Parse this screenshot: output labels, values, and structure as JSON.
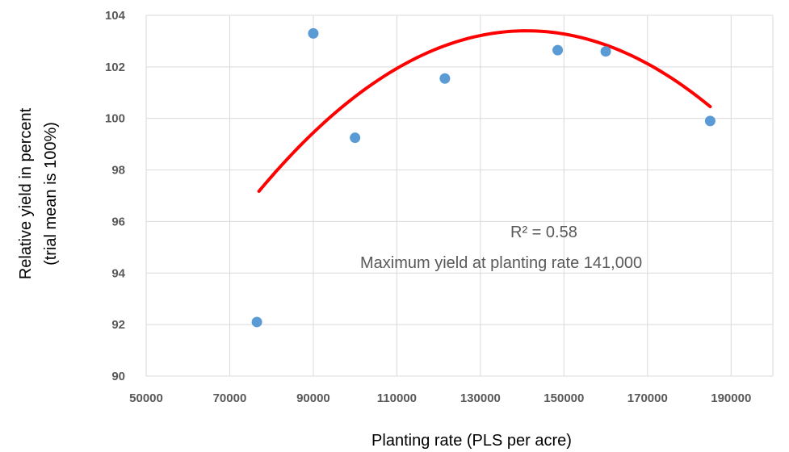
{
  "chart_data": {
    "type": "scatter",
    "xlabel": "Planting rate (PLS per acre)",
    "ylabel_lines": [
      "Relative yield in percent",
      "(trial mean is 100%)"
    ],
    "xlim": [
      50000,
      200000
    ],
    "ylim": [
      90,
      104
    ],
    "x_ticks": [
      50000,
      70000,
      90000,
      110000,
      130000,
      150000,
      170000,
      190000
    ],
    "y_ticks": [
      90,
      92,
      94,
      96,
      98,
      100,
      102,
      104
    ],
    "x_tick_labels": [
      "50000",
      "70000",
      "90000",
      "110000",
      "130000",
      "150000",
      "170000",
      "190000"
    ],
    "y_tick_labels": [
      "90",
      "92",
      "94",
      "96",
      "98",
      "100",
      "102",
      "104"
    ],
    "grid": true,
    "points": [
      {
        "x": 76500,
        "y": 92.1
      },
      {
        "x": 90000,
        "y": 103.3
      },
      {
        "x": 100000,
        "y": 99.25
      },
      {
        "x": 121500,
        "y": 101.55
      },
      {
        "x": 148500,
        "y": 102.65
      },
      {
        "x": 160000,
        "y": 102.6
      },
      {
        "x": 185000,
        "y": 99.9
      }
    ],
    "trendline": {
      "type": "polynomial-2",
      "x_range": [
        77000,
        185000
      ],
      "vertex": {
        "x": 141000,
        "y": 103.4
      },
      "a": -1.52e-09
    },
    "annotations": {
      "r_squared": "R² = 0.58",
      "maximum": "Maximum yield at planting rate 141,000"
    },
    "colors": {
      "points": "#5b9bd5",
      "trendline": "#ff0000",
      "grid": "#d9d9d9",
      "tick_text": "#595959"
    }
  }
}
